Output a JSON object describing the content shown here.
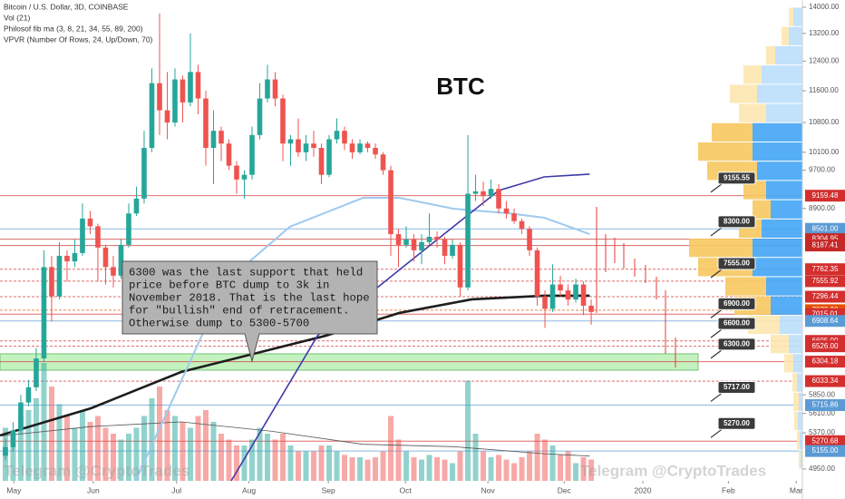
{
  "chart_data": {
    "type": "candlestick",
    "title": "BTC",
    "legend_lines": [
      "Bitcoin / U.S. Dollar, 3D, COINBASE",
      "Vol (21)",
      "Philosof fib ma (3, 8, 21, 34, 55, 89, 200)",
      "VPVR (Number Of Rows, 24, Up/Down, 70)"
    ],
    "watermarks": [
      "Telegram @CryptoTrades",
      "Telegram @CryptoTrades"
    ],
    "annotation": [
      "6300 was the last support that held",
      "price before BTC dump to 3k in",
      "November 2018. That is the last hope",
      "for \"bullish\" end of retracement.",
      "Otherwise dump to 5300-5700"
    ],
    "log_scale": true,
    "up_color": "#26a69a",
    "down_color": "#ef5350",
    "categories": [
      null,
      null,
      null,
      null,
      null,
      null,
      null,
      null,
      null,
      null,
      null,
      null,
      null,
      null,
      null,
      null,
      null,
      null,
      null,
      null,
      null,
      null,
      null,
      null,
      null,
      null,
      null,
      null,
      null,
      null,
      null,
      null,
      null,
      null,
      null,
      null,
      null,
      null,
      null,
      null,
      null,
      null,
      null,
      null,
      null,
      null,
      null,
      null,
      null,
      null,
      null,
      null,
      null,
      null,
      null,
      null,
      null,
      null,
      null,
      null,
      null,
      null,
      null,
      null,
      null,
      null,
      null,
      null,
      null,
      null,
      null,
      null,
      null,
      null,
      null,
      null,
      null
    ],
    "open": [
      5100,
      5200,
      5400,
      5750,
      5950,
      6350,
      7800,
      7300,
      8000,
      7900,
      8050,
      8700,
      8550,
      8150,
      7800,
      7650,
      8200,
      8800,
      9100,
      10200,
      11800,
      11100,
      10800,
      11900,
      11300,
      12100,
      11400,
      10200,
      10600,
      10300,
      9800,
      9500,
      9600,
      10500,
      11400,
      11900,
      11400,
      10300,
      10400,
      10100,
      10300,
      10200,
      9600,
      10400,
      10600,
      10300,
      10100,
      10300,
      10200,
      10050,
      9700,
      8400,
      8200,
      8300,
      8100,
      8250,
      8350,
      8300,
      8000,
      8200,
      7450,
      9200,
      9250,
      9150,
      9300,
      8900,
      8800,
      8650,
      8500,
      8100,
      7300,
      7100,
      7500,
      7400,
      7250,
      7500,
      7150
    ],
    "high": [
      5300,
      5500,
      5850,
      6050,
      6500,
      8100,
      8000,
      8250,
      8100,
      8300,
      9000,
      8850,
      8600,
      8200,
      8000,
      8300,
      9000,
      9350,
      10600,
      12200,
      13800,
      12100,
      12200,
      12000,
      13200,
      12300,
      11600,
      11100,
      10700,
      10400,
      9900,
      9700,
      10700,
      11800,
      12300,
      12100,
      11500,
      10500,
      10900,
      10500,
      10600,
      10300,
      10500,
      10900,
      10700,
      10400,
      10400,
      10350,
      10300,
      10100,
      9800,
      8500,
      8550,
      8400,
      8400,
      8800,
      8450,
      8350,
      8300,
      8250,
      10500,
      9600,
      9450,
      9500,
      9400,
      9050,
      8900,
      8700,
      8550,
      8150,
      7400,
      7850,
      7650,
      7500,
      7600,
      7550,
      7250
    ],
    "low": [
      5050,
      5150,
      5350,
      5700,
      5900,
      6300,
      6900,
      7250,
      7550,
      7800,
      8000,
      8400,
      7550,
      7500,
      7450,
      7600,
      8150,
      8750,
      9000,
      10100,
      10500,
      10400,
      10700,
      10800,
      11200,
      11000,
      9800,
      9400,
      9900,
      9700,
      9200,
      9100,
      9500,
      10400,
      11300,
      11200,
      9900,
      9800,
      10000,
      9900,
      10000,
      9400,
      9550,
      10300,
      10150,
      9950,
      10050,
      10100,
      9950,
      9600,
      8000,
      7800,
      8150,
      7900,
      7850,
      8200,
      8150,
      7850,
      7950,
      7300,
      7400,
      9050,
      8950,
      9100,
      8800,
      8700,
      8600,
      8400,
      8000,
      7150,
      6800,
      7050,
      7300,
      7150,
      7200,
      7000,
      6850
    ],
    "close": [
      5200,
      5400,
      5750,
      5950,
      6350,
      7800,
      7300,
      8000,
      7900,
      8050,
      8700,
      8550,
      8150,
      7800,
      7650,
      8200,
      8800,
      9100,
      10200,
      11800,
      11100,
      10800,
      11900,
      11300,
      12100,
      11400,
      10200,
      10600,
      10300,
      9800,
      9500,
      9600,
      10500,
      11400,
      11900,
      11400,
      10300,
      10400,
      10100,
      10300,
      10200,
      9600,
      10400,
      10600,
      10300,
      10100,
      10300,
      10200,
      10050,
      9700,
      8400,
      8200,
      8300,
      8100,
      8250,
      8350,
      8300,
      8000,
      8200,
      7450,
      9200,
      9250,
      9150,
      9300,
      8900,
      8800,
      8650,
      8500,
      8100,
      7300,
      7100,
      7500,
      7400,
      7250,
      7500,
      7150,
      7050
    ],
    "volume": {
      "values": [
        45,
        40,
        55,
        60,
        70,
        100,
        80,
        65,
        55,
        45,
        60,
        50,
        55,
        45,
        40,
        35,
        40,
        45,
        55,
        70,
        80,
        60,
        55,
        50,
        45,
        55,
        60,
        50,
        40,
        35,
        30,
        30,
        35,
        45,
        40,
        35,
        40,
        30,
        25,
        25,
        25,
        30,
        30,
        25,
        22,
        20,
        20,
        18,
        20,
        25,
        55,
        35,
        25,
        20,
        18,
        22,
        20,
        18,
        15,
        25,
        85,
        40,
        25,
        20,
        22,
        18,
        15,
        20,
        25,
        40,
        35,
        30,
        22,
        25,
        15,
        20,
        18
      ],
      "vlim": [
        0,
        100
      ],
      "ma_x": [
        -0.7,
        11.1,
        22.8,
        34.6,
        46.4,
        58.1,
        69.9,
        75.8
      ],
      "ma_values": [
        38,
        46,
        50,
        42,
        31,
        29,
        23,
        21
      ],
      "ma_color": "#555555"
    },
    "series": [
      {
        "color": "#1e1e1e",
        "width": 2.6,
        "x": [
          -0.7,
          11.1,
          22.8,
          32.2,
          41.6,
          51.1,
          60.5,
          69.9,
          75.8
        ],
        "values": [
          5339,
          5676,
          6159,
          6416,
          6684,
          7034,
          7253,
          7313,
          7313
        ]
      },
      {
        "color": "#9fc9ee",
        "width": 2,
        "x": [
          16.9,
          28.7,
          36.9,
          46.4,
          51.1,
          58.1,
          65.2,
          69.9,
          75.8
        ],
        "values": [
          4820,
          7555,
          8540,
          9116,
          9116,
          8895,
          8806,
          8716,
          8401
        ]
      },
      {
        "color": "#3f3aa8",
        "width": 1.6,
        "x": [
          29.3,
          40.5,
          52.2,
          58.1,
          64.0,
          69.9,
          75.8
        ],
        "values": [
          4820,
          6684,
          7869,
          8540,
          9267,
          9555,
          9614
        ]
      }
    ],
    "support_zone": [
      6184,
      6416
    ],
    "levels": [
      {
        "value": 9159.48,
        "color": "#d32f2f",
        "dashed": false
      },
      {
        "value": 8501,
        "label": "8501.00",
        "color": "#5b9bd5",
        "dashed": false
      },
      {
        "value": 8304.95,
        "color": "#c62828",
        "dashed": false
      },
      {
        "value": 8187.41,
        "color": "#c62828",
        "dashed": false
      },
      {
        "value": 7762.35,
        "color": "#d32f2f",
        "dashed": true
      },
      {
        "value": 7555.92,
        "color": "#d32f2f",
        "dashed": true
      },
      {
        "value": 7296.44,
        "color": "#d32f2f",
        "dashed": true
      },
      {
        "value": 7078.2,
        "label": "7078.20",
        "color": "#e65100",
        "dashed": true
      },
      {
        "value": 7015.01,
        "color": "#d32f2f",
        "dashed": false
      },
      {
        "value": 6908.64,
        "color": "#5b9bd5",
        "dashed": false
      },
      {
        "value": 6605,
        "label": "6605.00",
        "color": "#d32f2f",
        "dashed": true
      },
      {
        "value": 6526,
        "label": "6526.00",
        "color": "#d32f2f",
        "dashed": true
      },
      {
        "value": 6304.18,
        "color": "#d32f2f",
        "dashed": false
      },
      {
        "value": 6033.34,
        "color": "#d32f2f",
        "dashed": true
      },
      {
        "value": 5715.86,
        "color": "#5b9bd5",
        "dashed": false
      },
      {
        "value": 5270.68,
        "color": "#d32f2f",
        "dashed": false
      },
      {
        "value": 5155,
        "label": "5155.00",
        "color": "#5b9bd5",
        "dashed": false
      }
    ],
    "callouts": [
      {
        "value": 9155.55
      },
      {
        "value": 8300,
        "label": "8300.00"
      },
      {
        "value": 7555,
        "label": "7555.00"
      },
      {
        "value": 6900,
        "label": "6900.00"
      },
      {
        "value": 6600,
        "label": "6600.00"
      },
      {
        "value": 6300,
        "label": "6300.00"
      },
      {
        "value": 5717,
        "label": "5717.00"
      },
      {
        "value": 5270,
        "label": "5270.00"
      }
    ],
    "vpvr": {
      "bins": [
        14000,
        13406,
        12838,
        12293,
        11772,
        11273,
        10795,
        10337,
        9899,
        9479,
        9077,
        8692,
        8324,
        7971,
        7633,
        7309,
        6999,
        6702,
        6418,
        6146,
        5885,
        5636,
        5397,
        5168,
        4949
      ],
      "up": [
        10,
        15,
        30,
        45,
        50,
        40,
        55,
        55,
        50,
        40,
        35,
        45,
        55,
        55,
        40,
        35,
        25,
        15,
        10,
        6,
        4,
        5,
        3,
        2
      ],
      "down": [
        5,
        8,
        10,
        20,
        30,
        30,
        45,
        60,
        55,
        25,
        20,
        25,
        70,
        60,
        45,
        40,
        35,
        20,
        10,
        5,
        6,
        4,
        3,
        2
      ],
      "value_area": [
        6999,
        10795
      ],
      "up_color": "#42a5f5",
      "down_color": "#f6c85f",
      "up_light": "#bbdefb",
      "down_light": "#fde7b0"
    },
    "xlim": [
      -0.7,
      103.4
    ],
    "ylim": [
      4820,
      14230
    ],
    "xticks": [
      {
        "value": 1.1,
        "label": "May"
      },
      {
        "value": 11.4,
        "label": "Jun"
      },
      {
        "value": 22.2,
        "label": "Jul"
      },
      {
        "value": 31.6,
        "label": "Aug"
      },
      {
        "value": 41.9,
        "label": "Sep"
      },
      {
        "value": 51.9,
        "label": "Oct"
      },
      {
        "value": 62.6,
        "label": "Nov"
      },
      {
        "value": 72.5,
        "label": "Dec"
      },
      {
        "value": 82.7,
        "label": "2020"
      },
      {
        "value": 93.8,
        "label": "Feb"
      },
      {
        "value": 102.6,
        "label": "Mar"
      }
    ],
    "yticks": [
      {
        "value": 14000,
        "label": "14000.00"
      },
      {
        "value": 13200,
        "label": "13200.00"
      },
      {
        "value": 12400,
        "label": "12400.00"
      },
      {
        "value": 11600,
        "label": "11600.00"
      },
      {
        "value": 10800,
        "label": "10800.00"
      },
      {
        "value": 10100,
        "label": "10100.00"
      },
      {
        "value": 9700,
        "label": "9700.00"
      },
      {
        "value": 8900,
        "label": "8900.00"
      },
      {
        "value": 5850,
        "label": "5850.00"
      },
      {
        "value": 5610,
        "label": "5610.00"
      },
      {
        "value": 5370,
        "label": "5370.00"
      },
      {
        "value": 4950,
        "label": "4950.00"
      }
    ]
  }
}
